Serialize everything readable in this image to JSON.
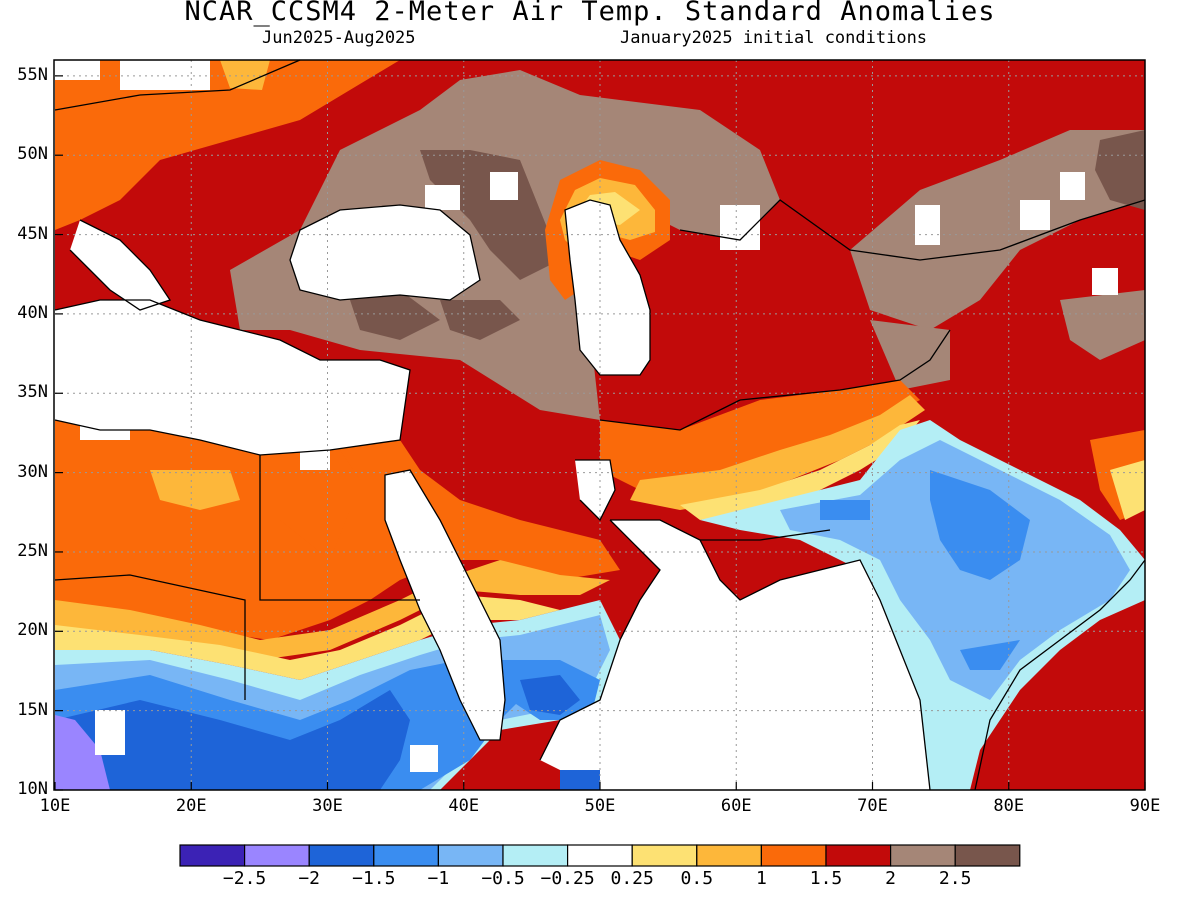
{
  "title": "NCAR_CCSM4 2-Meter Air Temp. Standard Anomalies",
  "subtitle_left": "Jun2025-Aug2025",
  "subtitle_right": "January2025 initial conditions",
  "lat_labels": [
    "55N",
    "50N",
    "45N",
    "40N",
    "35N",
    "30N",
    "25N",
    "20N",
    "15N",
    "10N"
  ],
  "lon_labels": [
    "10E",
    "20E",
    "30E",
    "40E",
    "50E",
    "60E",
    "70E",
    "80E",
    "90E"
  ],
  "colorbar": {
    "colors": [
      "#3b22b5",
      "#9a85ff",
      "#1e64d8",
      "#3a8df0",
      "#78b6f5",
      "#b4eef5",
      "#ffffff",
      "#fde173",
      "#fdb73a",
      "#fa6a0a",
      "#c20a0a",
      "#a58677",
      "#78564c"
    ],
    "labels": [
      "-2.5",
      "-2",
      "-1.5",
      "-1",
      "-0.5",
      "-0.25",
      "0.25",
      "0.5",
      "1",
      "1.5",
      "2",
      "2.5"
    ]
  },
  "map": {
    "lon_range": [
      10,
      90
    ],
    "lat_range": [
      10,
      56
    ],
    "grid": true,
    "regions": "standard anomaly field over Middle East / South Asia"
  }
}
